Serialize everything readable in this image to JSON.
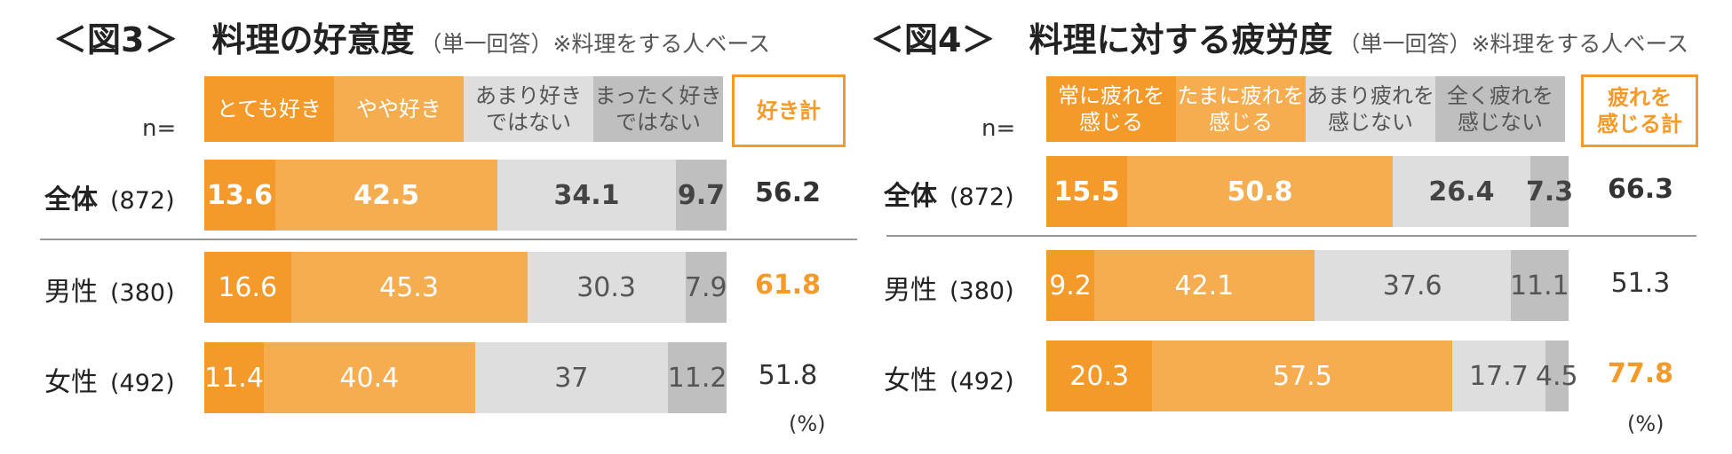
{
  "colors": {
    "strong": "#f39a2b",
    "light": "#f5ad4f",
    "gray": "#dedede",
    "darkgray": "#bfbfbf"
  },
  "chart_data": [
    {
      "type": "bar",
      "title": "＜図3＞　料理の好意度",
      "subtitle": "（単一回答）※料理をする人ベース",
      "n_label": "n=",
      "unit_label": "(%)",
      "series_labels": [
        "とても好き",
        "やや好き",
        "あまり好き\nではない",
        "まったく好き\nではない"
      ],
      "total_label": "好き計",
      "rows": [
        {
          "label": "全体",
          "n": "(872)",
          "values": [
            13.6,
            42.5,
            34.1,
            9.7
          ],
          "labels": [
            "13.6",
            "42.5",
            "34.1",
            "9.7"
          ],
          "total": "56.2"
        },
        {
          "label": "男性",
          "n": "(380)",
          "values": [
            16.6,
            45.3,
            30.3,
            7.9
          ],
          "labels": [
            "16.6",
            "45.3",
            "30.3",
            "7.9"
          ],
          "total": "61.8"
        },
        {
          "label": "女性",
          "n": "(492)",
          "values": [
            11.4,
            40.4,
            37,
            11.2
          ],
          "labels": [
            "11.4",
            "40.4",
            "37",
            "11.2"
          ],
          "total": "51.8"
        }
      ]
    },
    {
      "type": "bar",
      "title": "＜図4＞　料理に対する疲労度",
      "subtitle": "（単一回答）※料理をする人ベース",
      "n_label": "n=",
      "unit_label": "(%)",
      "series_labels": [
        "常に疲れを\n感じる",
        "たまに疲れを\n感じる",
        "あまり疲れを\n感じない",
        "全く疲れを\n感じない"
      ],
      "total_label": "疲れを\n感じる計",
      "rows": [
        {
          "label": "全体",
          "n": "(872)",
          "values": [
            15.5,
            50.8,
            26.4,
            7.3
          ],
          "labels": [
            "15.5",
            "50.8",
            "26.4",
            "7.3"
          ],
          "total": "66.3"
        },
        {
          "label": "男性",
          "n": "(380)",
          "values": [
            9.2,
            42.1,
            37.6,
            11.1
          ],
          "labels": [
            "9.2",
            "42.1",
            "37.6",
            "11.1"
          ],
          "total": "51.3"
        },
        {
          "label": "女性",
          "n": "(492)",
          "values": [
            20.3,
            57.5,
            17.7,
            4.5
          ],
          "labels": [
            "20.3",
            "57.5",
            "17.7",
            "4.5"
          ],
          "total": "77.8"
        }
      ]
    }
  ]
}
